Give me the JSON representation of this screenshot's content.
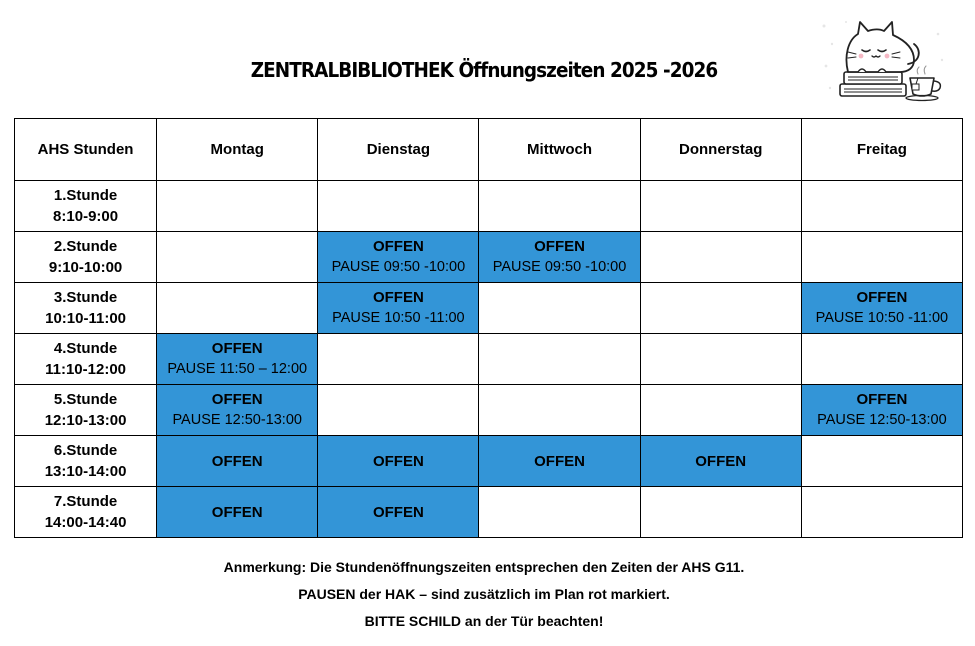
{
  "title": "ZENTRALBIBLIOTHEK Öffnungszeiten 2025 -2026",
  "logo": {
    "icon": "sleeping-cat-on-books-with-tea-icon"
  },
  "colors": {
    "open_fill": "#3395d7",
    "border": "#000000"
  },
  "table": {
    "headers": [
      "AHS Stunden",
      "Montag",
      "Dienstag",
      "Mittwoch",
      "Donnerstag",
      "Freitag"
    ],
    "rows": [
      {
        "hour": "1.Stunde",
        "time": "8:10-9:00",
        "cells": [
          {
            "status": "",
            "pause": ""
          },
          {
            "status": "",
            "pause": ""
          },
          {
            "status": "",
            "pause": ""
          },
          {
            "status": "",
            "pause": ""
          },
          {
            "status": "",
            "pause": ""
          }
        ]
      },
      {
        "hour": "2.Stunde",
        "time": "9:10-10:00",
        "cells": [
          {
            "status": "",
            "pause": ""
          },
          {
            "status": "OFFEN",
            "pause": "PAUSE 09:50 -10:00"
          },
          {
            "status": "OFFEN",
            "pause": "PAUSE 09:50 -10:00"
          },
          {
            "status": "",
            "pause": ""
          },
          {
            "status": "",
            "pause": ""
          }
        ]
      },
      {
        "hour": "3.Stunde",
        "time": "10:10-11:00",
        "cells": [
          {
            "status": "",
            "pause": ""
          },
          {
            "status": "OFFEN",
            "pause": "PAUSE 10:50 -11:00"
          },
          {
            "status": "",
            "pause": ""
          },
          {
            "status": "",
            "pause": ""
          },
          {
            "status": "OFFEN",
            "pause": "PAUSE 10:50 -11:00"
          }
        ]
      },
      {
        "hour": "4.Stunde",
        "time": "11:10-12:00",
        "cells": [
          {
            "status": "OFFEN",
            "pause": "PAUSE 11:50 – 12:00"
          },
          {
            "status": "",
            "pause": ""
          },
          {
            "status": "",
            "pause": ""
          },
          {
            "status": "",
            "pause": ""
          },
          {
            "status": "",
            "pause": ""
          }
        ]
      },
      {
        "hour": "5.Stunde",
        "time": "12:10-13:00",
        "cells": [
          {
            "status": "OFFEN",
            "pause": "PAUSE 12:50-13:00"
          },
          {
            "status": "",
            "pause": ""
          },
          {
            "status": "",
            "pause": ""
          },
          {
            "status": "",
            "pause": ""
          },
          {
            "status": "OFFEN",
            "pause": "PAUSE 12:50-13:00"
          }
        ]
      },
      {
        "hour": "6.Stunde",
        "time": "13:10-14:00",
        "cells": [
          {
            "status": "OFFEN",
            "pause": ""
          },
          {
            "status": "OFFEN",
            "pause": ""
          },
          {
            "status": "OFFEN",
            "pause": ""
          },
          {
            "status": "OFFEN",
            "pause": ""
          },
          {
            "status": "",
            "pause": ""
          }
        ]
      },
      {
        "hour": "7.Stunde",
        "time": "14:00-14:40",
        "cells": [
          {
            "status": "OFFEN",
            "pause": ""
          },
          {
            "status": "OFFEN",
            "pause": ""
          },
          {
            "status": "",
            "pause": ""
          },
          {
            "status": "",
            "pause": ""
          },
          {
            "status": "",
            "pause": ""
          }
        ]
      }
    ]
  },
  "notes": [
    "Anmerkung: Die Stundenöffnungszeiten entsprechen den Zeiten der AHS G11.",
    "PAUSEN der HAK – sind zusätzlich im Plan rot markiert.",
    "BITTE SCHILD an der Tür beachten!"
  ]
}
